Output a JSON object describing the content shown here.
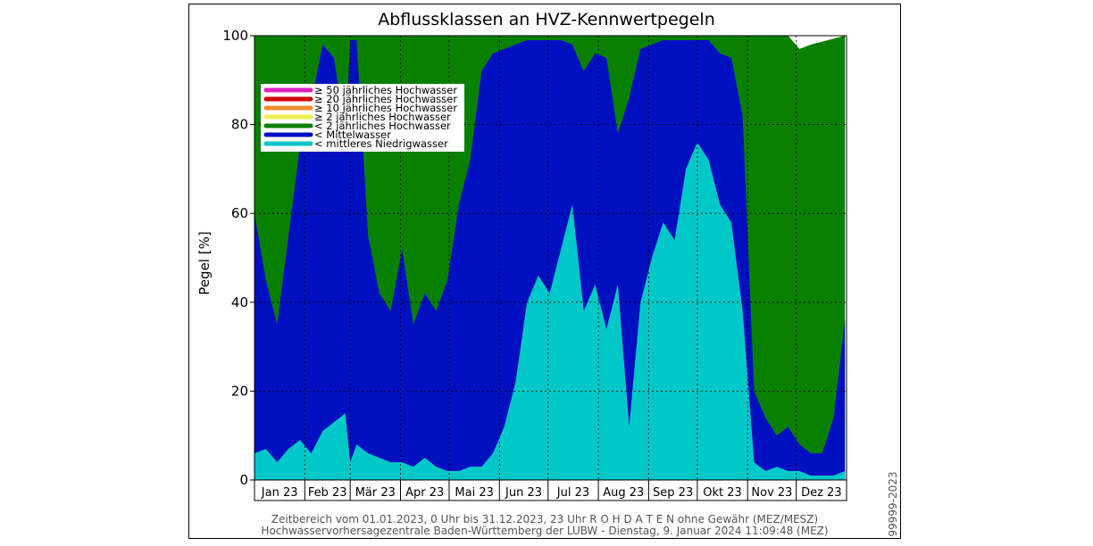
{
  "chart_data": {
    "type": "area",
    "title": "Abflussklassen an HVZ-Kennwertpegeln",
    "xlabel": "",
    "ylabel": "Pegel [%]",
    "ylim": [
      0,
      100
    ],
    "yticks": [
      0,
      20,
      40,
      60,
      80,
      100
    ],
    "grid": true,
    "legend_position": "top-left",
    "categories": [
      "Jan 23",
      "Feb 23",
      "Mär 23",
      "Apr 23",
      "Mai 23",
      "Jun 23",
      "Jul 23",
      "Aug 23",
      "Sep 23",
      "Okt 23",
      "Nov 23",
      "Dez 23"
    ],
    "x_start": "2023-01-01",
    "x_end": "2023-12-31",
    "legend": [
      {
        "label": "≥ 50 jährliches Hochwasser",
        "color": "#e020c0"
      },
      {
        "label": "≥ 20 jährliches Hochwasser",
        "color": "#d00000"
      },
      {
        "label": "≥ 10 jährliches Hochwasser",
        "color": "#f09030"
      },
      {
        "label": "≥ 2 jährliches Hochwasser",
        "color": "#f0f050"
      },
      {
        "label": "< 2 jährliches Hochwasser",
        "color": "#0a8000"
      },
      {
        "label": "< Mittelwasser",
        "color": "#0010c0"
      },
      {
        "label": "< mittleres Niedrigwasser",
        "color": "#00c8c8"
      }
    ],
    "series": [
      {
        "name": "< mittleres Niedrigwasser",
        "x": [
          "2023-01-01",
          "2023-01-08",
          "2023-01-15",
          "2023-01-22",
          "2023-01-29",
          "2023-02-05",
          "2023-02-12",
          "2023-02-19",
          "2023-02-26",
          "2023-03-01",
          "2023-03-05",
          "2023-03-12",
          "2023-03-19",
          "2023-03-26",
          "2023-04-02",
          "2023-04-09",
          "2023-04-16",
          "2023-04-23",
          "2023-04-30",
          "2023-05-07",
          "2023-05-14",
          "2023-05-21",
          "2023-05-28",
          "2023-06-04",
          "2023-06-11",
          "2023-06-18",
          "2023-06-25",
          "2023-07-02",
          "2023-07-09",
          "2023-07-16",
          "2023-07-23",
          "2023-07-30",
          "2023-08-06",
          "2023-08-13",
          "2023-08-20",
          "2023-08-27",
          "2023-09-03",
          "2023-09-10",
          "2023-09-17",
          "2023-09-24",
          "2023-10-01",
          "2023-10-08",
          "2023-10-15",
          "2023-10-22",
          "2023-10-29",
          "2023-11-05",
          "2023-11-12",
          "2023-11-19",
          "2023-11-26",
          "2023-12-03",
          "2023-12-10",
          "2023-12-17",
          "2023-12-24",
          "2023-12-31"
        ],
        "values": [
          6,
          7,
          4,
          7,
          9,
          6,
          11,
          13,
          15,
          4,
          8,
          6,
          5,
          4,
          4,
          3,
          5,
          3,
          2,
          2,
          3,
          3,
          6,
          12,
          22,
          40,
          46,
          42,
          52,
          62,
          38,
          44,
          34,
          44,
          12,
          40,
          50,
          58,
          54,
          70,
          76,
          72,
          62,
          58,
          38,
          4,
          2,
          3,
          2,
          2,
          1,
          1,
          1,
          2
        ]
      },
      {
        "name": "< Mittelwasser",
        "x": [
          "2023-01-01",
          "2023-01-08",
          "2023-01-15",
          "2023-01-22",
          "2023-01-29",
          "2023-02-05",
          "2023-02-12",
          "2023-02-19",
          "2023-02-26",
          "2023-03-01",
          "2023-03-05",
          "2023-03-12",
          "2023-03-19",
          "2023-03-26",
          "2023-04-02",
          "2023-04-09",
          "2023-04-16",
          "2023-04-23",
          "2023-04-30",
          "2023-05-07",
          "2023-05-14",
          "2023-05-21",
          "2023-05-28",
          "2023-06-04",
          "2023-06-11",
          "2023-06-18",
          "2023-06-25",
          "2023-07-02",
          "2023-07-09",
          "2023-07-16",
          "2023-07-23",
          "2023-07-30",
          "2023-08-06",
          "2023-08-13",
          "2023-08-20",
          "2023-08-27",
          "2023-09-03",
          "2023-09-10",
          "2023-09-17",
          "2023-09-24",
          "2023-10-01",
          "2023-10-08",
          "2023-10-15",
          "2023-10-22",
          "2023-10-29",
          "2023-11-05",
          "2023-11-12",
          "2023-11-19",
          "2023-11-26",
          "2023-12-03",
          "2023-12-10",
          "2023-12-17",
          "2023-12-24",
          "2023-12-31"
        ],
        "values": [
          60,
          45,
          35,
          55,
          75,
          85,
          98,
          95,
          78,
          99,
          99,
          55,
          42,
          38,
          52,
          35,
          42,
          38,
          45,
          62,
          72,
          92,
          96,
          97,
          98,
          99,
          99,
          99,
          99,
          98,
          92,
          96,
          95,
          78,
          86,
          97,
          98,
          99,
          99,
          99,
          99,
          99,
          96,
          95,
          82,
          20,
          14,
          10,
          12,
          8,
          6,
          6,
          14,
          36
        ]
      },
      {
        "name": "< 2 jährliches Hochwasser",
        "x": [
          "2023-01-01",
          "2023-02-01",
          "2023-03-01",
          "2023-04-01",
          "2023-05-01",
          "2023-06-01",
          "2023-07-01",
          "2023-08-01",
          "2023-09-01",
          "2023-10-01",
          "2023-11-01",
          "2023-11-26",
          "2023-12-03",
          "2023-12-10",
          "2023-12-31"
        ],
        "values": [
          100,
          100,
          100,
          100,
          100,
          100,
          100,
          100,
          100,
          100,
          100,
          100,
          97,
          98,
          100
        ]
      }
    ]
  },
  "footer": {
    "line1": "Zeitbereich vom 01.01.2023, 0 Uhr bis 31.12.2023, 23 Uhr    R O H D A T E N ohne Gewähr (MEZ/MESZ)",
    "line2": "Hochwasservorhersagezentrale Baden-Württemberg der LUBW -  Dienstag, 9. Januar 2024 11:09:48 (MEZ)",
    "side": "99999-2023"
  },
  "colors": {
    "background": "#ffffff",
    "grid": "#000000"
  }
}
